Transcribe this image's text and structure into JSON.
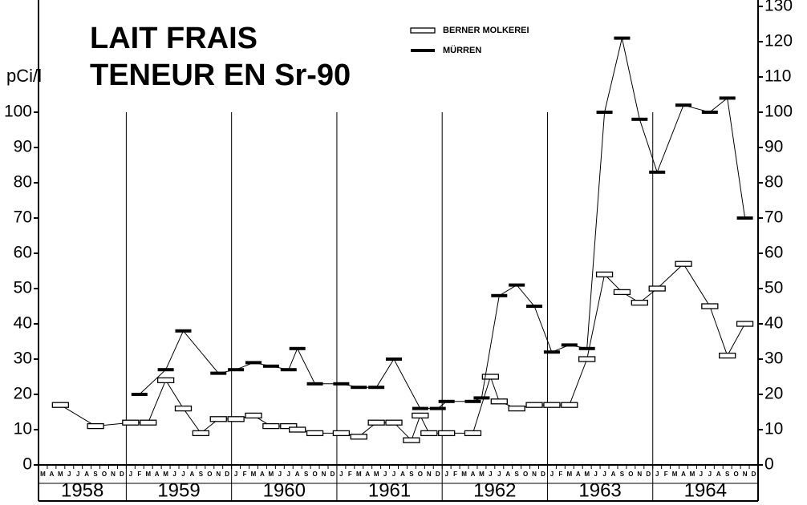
{
  "chart_data": {
    "type": "line",
    "title": "LAIT FRAIS",
    "subtitle": "TENEUR EN Sr-90",
    "y_label": "pCi/l",
    "months": [
      "J",
      "F",
      "M",
      "A",
      "M",
      "J",
      "J",
      "A",
      "S",
      "O",
      "N",
      "D"
    ],
    "years": [
      "1958",
      "1959",
      "1960",
      "1961",
      "1962",
      "1963",
      "1964"
    ],
    "xlim": [
      "1958-03",
      "1964-12"
    ],
    "ylim": [
      0,
      130
    ],
    "yticks": [
      0,
      10,
      20,
      30,
      40,
      50,
      60,
      70,
      80,
      90,
      100
    ],
    "y2lim": [
      0,
      130
    ],
    "y2ticks": [
      0,
      10,
      20,
      30,
      40,
      50,
      60,
      70,
      80,
      90,
      100,
      110,
      120,
      130
    ],
    "series": [
      {
        "name": "BERNER MOLKEREI",
        "color": "#000000",
        "marker": "open",
        "x": [
          "1958-05",
          "1958-09",
          "1959-01",
          "1959-03",
          "1959-05",
          "1959-07",
          "1959-09",
          "1959-11",
          "1960-01",
          "1960-03",
          "1960-05",
          "1960-07",
          "1960-08",
          "1960-10",
          "1961-01",
          "1961-03",
          "1961-05",
          "1961-07",
          "1961-09",
          "1961-10",
          "1961-11",
          "1962-01",
          "1962-04",
          "1962-06",
          "1962-07",
          "1962-09",
          "1962-11",
          "1963-01",
          "1963-03",
          "1963-05",
          "1963-07",
          "1963-09",
          "1963-11",
          "1964-01",
          "1964-04",
          "1964-07",
          "1964-09",
          "1964-11"
        ],
        "values": [
          17,
          11,
          12,
          12,
          24,
          16,
          9,
          13,
          13,
          14,
          11,
          11,
          10,
          9,
          9,
          8,
          12,
          12,
          7,
          14,
          9,
          9,
          9,
          25,
          18,
          16,
          17,
          17,
          17,
          30,
          54,
          49,
          46,
          50,
          57,
          45,
          31,
          40
        ]
      },
      {
        "name": "MÜRREN",
        "color": "#000000",
        "marker": "filled",
        "x": [
          "1959-02",
          "1959-05",
          "1959-07",
          "1959-11",
          "1960-01",
          "1960-03",
          "1960-05",
          "1960-07",
          "1960-08",
          "1960-10",
          "1961-01",
          "1961-03",
          "1961-05",
          "1961-07",
          "1961-10",
          "1961-12",
          "1962-01",
          "1962-04",
          "1962-05",
          "1962-07",
          "1962-09",
          "1962-11",
          "1963-01",
          "1963-03",
          "1963-05",
          "1963-07",
          "1963-09",
          "1963-11",
          "1964-01",
          "1964-04",
          "1964-07",
          "1964-09",
          "1964-11"
        ],
        "values": [
          20,
          27,
          38,
          26,
          27,
          29,
          28,
          27,
          33,
          23,
          23,
          22,
          22,
          30,
          16,
          16,
          18,
          18,
          19,
          48,
          51,
          45,
          32,
          34,
          33,
          100,
          121,
          98,
          83,
          102,
          100,
          104,
          70
        ]
      }
    ]
  }
}
